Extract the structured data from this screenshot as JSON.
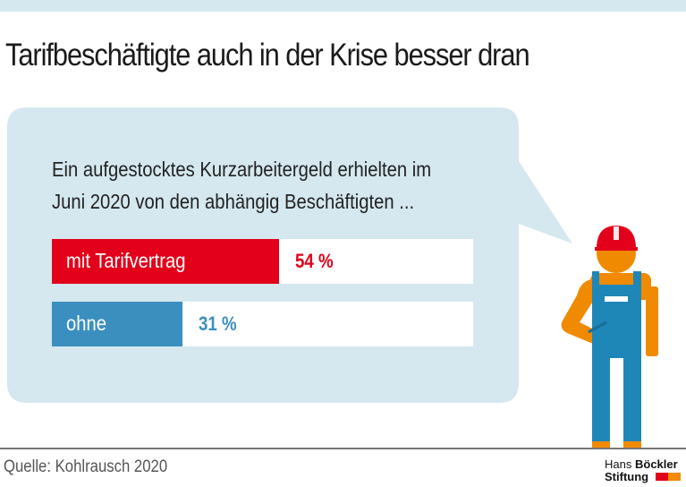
{
  "title": "Tarifbeschäftigte auch in der Krise besser dran",
  "chart_data": {
    "type": "bar",
    "subtitle_lines": [
      "Ein aufgestocktes Kurzarbeitergeld erhielten im",
      "Juni 2020 von den abhängig Beschäftigten ..."
    ],
    "categories": [
      "mit Tarifvertrag",
      "ohne"
    ],
    "values": [
      54,
      31
    ],
    "value_labels": [
      "54 %",
      "31 %"
    ],
    "colors": [
      "#e2001a",
      "#3b8fbe"
    ],
    "ylim": [
      0,
      100
    ]
  },
  "source": "Quelle: Kohlrausch 2020",
  "logo": {
    "line1_light": "Hans",
    "line1_bold": "Böckler",
    "line2": "Stiftung"
  },
  "colors": {
    "bubble": "#d5e8ef",
    "red": "#e2001a",
    "blue": "#3b8fbe",
    "orange": "#f08a00",
    "overall": "#1f86b8"
  }
}
